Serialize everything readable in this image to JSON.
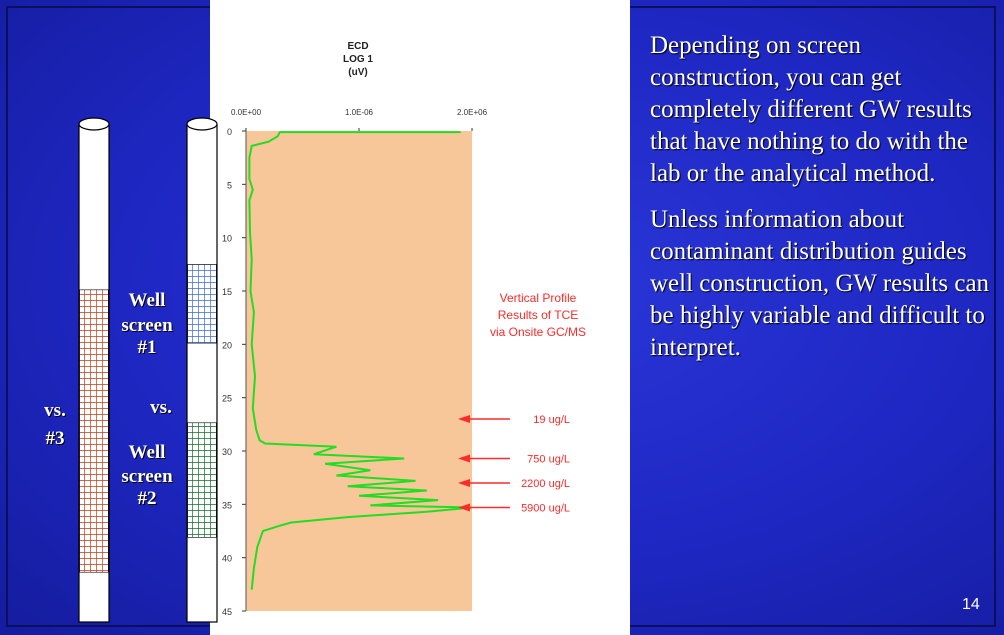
{
  "chart_data": {
    "type": "line",
    "title": "ECD\nLOG 1\n(uV)",
    "title_lines": [
      "ECD",
      "LOG 1",
      "(uV)"
    ],
    "x_ticks": [
      "0.0E+00",
      "1.0E-06",
      "2.0E+06"
    ],
    "y_ticks": [
      "0",
      "5",
      "10",
      "15",
      "20",
      "25",
      "30",
      "35",
      "40",
      "45"
    ],
    "ylim": [
      0,
      45
    ],
    "y_inverted": true,
    "xlim": [
      0,
      2000000
    ],
    "colors": {
      "line": "#22dd22",
      "plot_bg": "#f7c79a",
      "annotation": "#ff2a2a"
    },
    "series": [
      {
        "points": [
          [
            1900000,
            0.1
          ],
          [
            300000,
            0.1
          ],
          [
            280000,
            0.5
          ],
          [
            200000,
            1.0
          ],
          [
            50000,
            1.4
          ],
          [
            30000,
            2.5
          ],
          [
            30000,
            4.5
          ],
          [
            60000,
            5.5
          ],
          [
            30000,
            6.5
          ],
          [
            35000,
            9.5
          ],
          [
            50000,
            12
          ],
          [
            40000,
            15
          ],
          [
            70000,
            17
          ],
          [
            50000,
            20
          ],
          [
            80000,
            23
          ],
          [
            60000,
            26
          ],
          [
            90000,
            28
          ],
          [
            120000,
            29
          ],
          [
            170000,
            29.3
          ],
          [
            800000,
            29.6
          ],
          [
            600000,
            30.3
          ],
          [
            1400000,
            30.7
          ],
          [
            700000,
            31.2
          ],
          [
            1100000,
            31.8
          ],
          [
            800000,
            32.3
          ],
          [
            1500000,
            32.8
          ],
          [
            900000,
            33.3
          ],
          [
            1600000,
            33.7
          ],
          [
            1000000,
            34.2
          ],
          [
            1700000,
            34.6
          ],
          [
            1100000,
            35.1
          ],
          [
            2000000,
            35.3
          ],
          [
            1600000,
            35.7
          ],
          [
            900000,
            36.2
          ],
          [
            400000,
            36.7
          ],
          [
            300000,
            37.0
          ],
          [
            150000,
            37.5
          ],
          [
            100000,
            39
          ],
          [
            70000,
            41
          ],
          [
            50000,
            43
          ]
        ]
      }
    ],
    "annotation_title": "Vertical Profile\nResults of TCE\nvia Onsite GC/MS",
    "annotation_title_lines": [
      "Vertical Profile",
      "Results of TCE",
      "via Onsite GC/MS"
    ],
    "annotations": [
      {
        "label": "19 ug/L",
        "depth": 27.0
      },
      {
        "label": "750 ug/L",
        "depth": 30.7
      },
      {
        "label": "2200 ug/L",
        "depth": 33.0
      },
      {
        "label": "5900 ug/L",
        "depth": 35.3
      }
    ]
  },
  "wells": {
    "well3": {
      "screen_top_depth": 0.333,
      "screen_bottom_depth": 0.9,
      "screen_color": "#c83a10"
    },
    "well12": {
      "screen1": {
        "top": 0.282,
        "bottom": 0.44,
        "color": "#3a6ad8"
      },
      "screen2": {
        "top": 0.6,
        "bottom": 0.83,
        "color": "#0f6e2a"
      }
    }
  },
  "labels": {
    "vs_left": "vs.",
    "num3": "#3",
    "well1_line1": "Well",
    "well1_line2": "screen",
    "well1_line3": "#1",
    "vs_mid": "vs.",
    "well2_line1": "Well",
    "well2_line2": "screen",
    "well2_line3": "#2"
  },
  "text": {
    "para1": "Depending on screen construction, you can get completely different GW results that have nothing to do with the lab or the analytical method.",
    "para2": "Unless information about contaminant distribution guides well construction, GW results can be highly variable and difficult to interpret."
  },
  "page_number": "14"
}
